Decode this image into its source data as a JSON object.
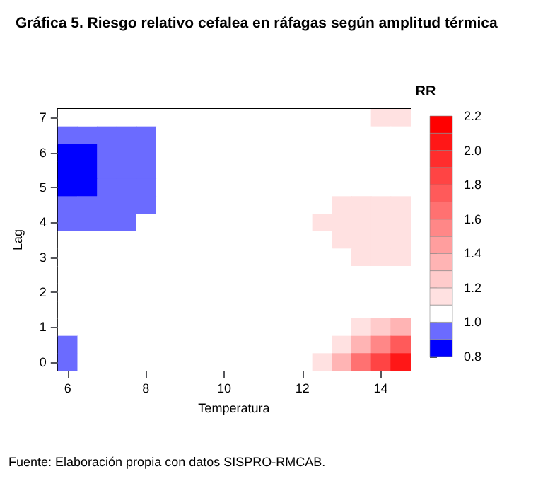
{
  "chart_data": {
    "type": "heatmap",
    "title": "Gráfica 5. Riesgo relativo cefalea en ráfagas según amplitud térmica",
    "xlabel": "Temperatura",
    "ylabel": "Lag",
    "clabel": "RR",
    "annotations": [
      "Fuente: Elaboración propia con datos SISPRO-RMCAB."
    ],
    "categories": [
      "6",
      null,
      null,
      null,
      "8",
      null,
      null,
      null,
      "10",
      null,
      null,
      null,
      "12",
      null,
      null,
      null,
      "14",
      null
    ],
    "y_categories": [
      "7",
      null,
      "6",
      null,
      "5",
      null,
      "4",
      null,
      "3",
      null,
      "2",
      null,
      "1",
      null,
      "0"
    ],
    "cells": [
      [
        1.05,
        1.05,
        1.05,
        1.05,
        1.05,
        1.05,
        1.05,
        1.05,
        1.05,
        1.05,
        1.05,
        1.05,
        1.05,
        1.05,
        1.05,
        1.05,
        1.15,
        1.15
      ],
      [
        0.95,
        0.95,
        0.95,
        0.95,
        0.95,
        1.05,
        1.05,
        1.05,
        1.05,
        1.05,
        1.05,
        1.05,
        1.05,
        1.05,
        1.05,
        1.05,
        1.05,
        1.05
      ],
      [
        0.85,
        0.85,
        0.95,
        0.95,
        0.95,
        1.05,
        1.05,
        1.05,
        1.05,
        1.05,
        1.05,
        1.05,
        1.05,
        1.05,
        1.05,
        1.05,
        1.05,
        1.05
      ],
      [
        0.85,
        0.85,
        0.95,
        0.95,
        0.95,
        1.05,
        1.05,
        1.05,
        1.05,
        1.05,
        1.05,
        1.05,
        1.05,
        1.05,
        1.05,
        1.05,
        1.05,
        1.05
      ],
      [
        0.85,
        0.85,
        0.95,
        0.95,
        0.95,
        1.05,
        1.05,
        1.05,
        1.05,
        1.05,
        1.05,
        1.05,
        1.05,
        1.05,
        1.05,
        1.05,
        1.05,
        1.05
      ],
      [
        0.95,
        0.95,
        0.95,
        0.95,
        0.95,
        1.05,
        1.05,
        1.05,
        1.05,
        1.05,
        1.05,
        1.05,
        1.05,
        1.05,
        1.15,
        1.15,
        1.15,
        1.15
      ],
      [
        0.95,
        0.95,
        0.95,
        0.95,
        1.05,
        1.05,
        1.05,
        1.05,
        1.05,
        1.05,
        1.05,
        1.05,
        1.05,
        1.15,
        1.15,
        1.15,
        1.15,
        1.15
      ],
      [
        1.05,
        1.05,
        1.05,
        1.05,
        1.05,
        1.05,
        1.05,
        1.05,
        1.05,
        1.05,
        1.05,
        1.05,
        1.05,
        1.05,
        1.15,
        1.15,
        1.15,
        1.15
      ],
      [
        1.05,
        1.05,
        1.05,
        1.05,
        1.05,
        1.05,
        1.05,
        1.05,
        1.05,
        1.05,
        1.05,
        1.05,
        1.05,
        1.05,
        1.05,
        1.15,
        1.15,
        1.15
      ],
      [
        1.05,
        1.05,
        1.05,
        1.05,
        1.05,
        1.05,
        1.05,
        1.05,
        1.05,
        1.05,
        1.05,
        1.05,
        1.05,
        1.05,
        1.05,
        1.05,
        1.05,
        1.05
      ],
      [
        1.05,
        1.05,
        1.05,
        1.05,
        1.05,
        1.05,
        1.05,
        1.05,
        1.05,
        1.05,
        1.05,
        1.05,
        1.05,
        1.05,
        1.05,
        1.05,
        1.05,
        1.05
      ],
      [
        1.05,
        1.05,
        1.05,
        1.05,
        1.05,
        1.05,
        1.05,
        1.05,
        1.05,
        1.05,
        1.05,
        1.05,
        1.05,
        1.05,
        1.05,
        1.05,
        1.05,
        1.05
      ],
      [
        1.05,
        1.05,
        1.05,
        1.05,
        1.05,
        1.05,
        1.05,
        1.05,
        1.05,
        1.05,
        1.05,
        1.05,
        1.05,
        1.05,
        1.05,
        1.15,
        1.25,
        1.35
      ],
      [
        0.95,
        1.05,
        1.05,
        1.05,
        1.05,
        1.05,
        1.05,
        1.05,
        1.05,
        1.05,
        1.05,
        1.05,
        1.05,
        1.05,
        1.15,
        1.35,
        1.55,
        1.75
      ],
      [
        0.95,
        1.05,
        1.05,
        1.05,
        1.05,
        1.05,
        1.05,
        1.05,
        1.05,
        1.05,
        1.05,
        1.05,
        1.05,
        1.15,
        1.35,
        1.65,
        1.85,
        2.05
      ]
    ],
    "clim": [
      0.8,
      2.2
    ],
    "cticks": [
      0.8,
      {
        "value": 1,
        "label": "1.0"
      },
      1.2,
      1.4,
      1.6,
      1.8,
      {
        "value": 2,
        "label": "2.0"
      },
      2.2
    ]
  }
}
